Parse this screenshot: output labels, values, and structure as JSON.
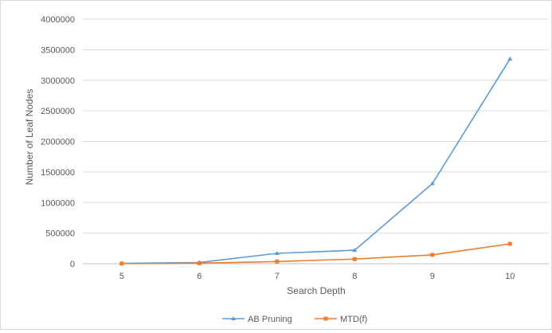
{
  "chart_data": {
    "type": "line",
    "xlabel": "Search Depth",
    "ylabel": "Number of Leaf Nodes",
    "categories": [
      "5",
      "6",
      "7",
      "8",
      "9",
      "10"
    ],
    "ylim": [
      0,
      4000000
    ],
    "yticks": [
      "0",
      "500000",
      "1000000",
      "1500000",
      "2000000",
      "2500000",
      "3000000",
      "3500000",
      "4000000"
    ],
    "grid": true,
    "legend_position": "bottom",
    "series": [
      {
        "name": "AB Pruning",
        "color": "#5b9bd5",
        "marker": "triangle",
        "values": [
          5000,
          20000,
          170000,
          220000,
          1310000,
          3350000
        ]
      },
      {
        "name": "MTD(f)",
        "color": "#ed7d31",
        "marker": "square",
        "values": [
          3000,
          8000,
          35000,
          75000,
          145000,
          325000
        ]
      }
    ]
  }
}
